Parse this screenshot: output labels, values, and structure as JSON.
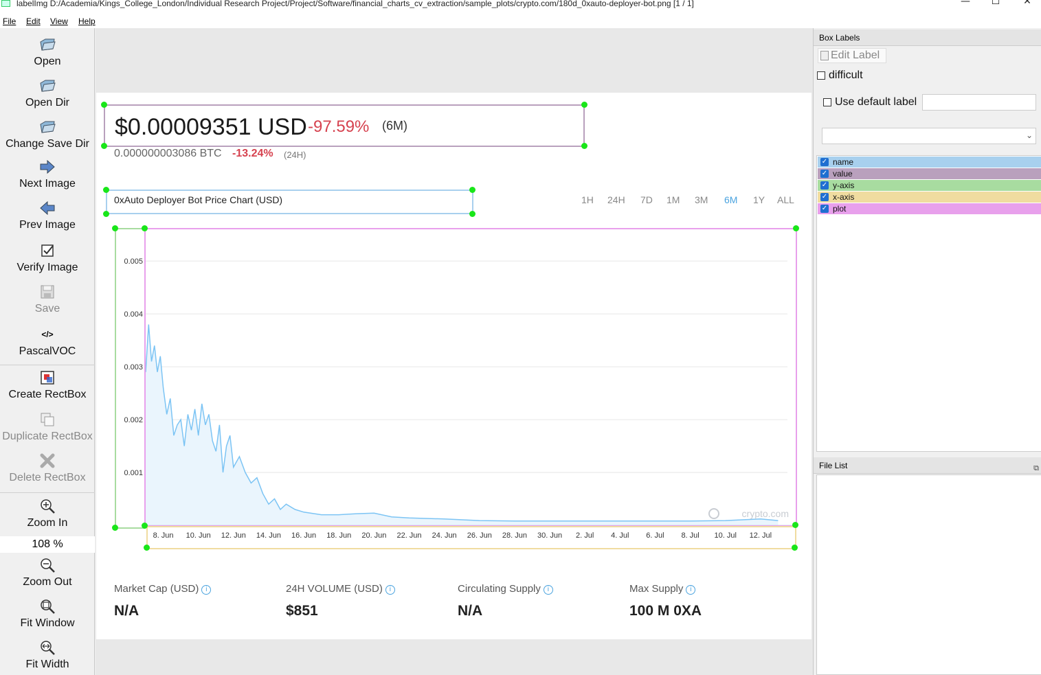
{
  "window": {
    "title": "labelImg D:/Academia/Kings_College_London/Individual Research Project/Project/Software/financial_charts_cv_extraction/sample_plots/crypto.com/180d_0xauto-deployer-bot.png [1 / 1]",
    "minimize": "—",
    "maximize": "☐",
    "close": "✕"
  },
  "menu": {
    "file": "File",
    "edit": "Edit",
    "view": "View",
    "help": "Help"
  },
  "toolbar": {
    "open": "Open",
    "open_dir": "Open Dir",
    "change_save_dir": "Change Save Dir",
    "next_image": "Next Image",
    "prev_image": "Prev Image",
    "verify_image": "Verify Image",
    "save": "Save",
    "format_icon": "</>",
    "format": "PascalVOC",
    "create_rectbox": "Create RectBox",
    "duplicate_rectbox": "Duplicate RectBox",
    "delete_rectbox": "Delete RectBox",
    "zoom_in": "Zoom In",
    "zoom_level": "108 %",
    "zoom_out": "Zoom Out",
    "fit_window": "Fit Window",
    "fit_width": "Fit Width"
  },
  "page": {
    "price": "$0.00009351 USD",
    "price_change": "-97.59%",
    "price_period": "(6M)",
    "btc_price": "0.000000003086 BTC",
    "btc_change": "-13.24%",
    "btc_period": "(24H)",
    "chart_title": "0xAuto Deployer Bot Price Chart (USD)",
    "ranges": [
      "1H",
      "24H",
      "7D",
      "1M",
      "3M",
      "6M",
      "1Y",
      "ALL"
    ],
    "active_range": "6M",
    "watermark": "crypto.com",
    "stats": [
      {
        "label": "Market Cap (USD)",
        "value": "N/A"
      },
      {
        "label": "24H VOLUME (USD)",
        "value": "$851"
      },
      {
        "label": "Circulating Supply",
        "value": "N/A"
      },
      {
        "label": "Max Supply",
        "value": "100 M 0XA"
      }
    ],
    "info_glyph": "i"
  },
  "annotation_colors": {
    "name": "#a8d0ee",
    "value": "#b9a0bd",
    "y_axis": "#a8dca0",
    "x_axis": "#f0dca0",
    "plot": "#e8a0ec",
    "handle": "#19e619"
  },
  "chart_data": {
    "type": "area",
    "xlabel": "",
    "ylabel": "",
    "x_ticks": [
      "8. Jun",
      "10. Jun",
      "12. Jun",
      "14. Jun",
      "16. Jun",
      "18. Jun",
      "20. Jun",
      "22. Jun",
      "24. Jun",
      "26. Jun",
      "28. Jun",
      "30. Jun",
      "2. Jul",
      "4. Jul",
      "6. Jul",
      "8. Jul",
      "10. Jul",
      "12. Jul"
    ],
    "y_ticks": [
      "0.001",
      "0.002",
      "0.003",
      "0.004",
      "0.005"
    ],
    "ylim": [
      0,
      0.0056
    ],
    "x_start": "7. Jun",
    "x_end": "14. Jul",
    "grid": true,
    "line_color": "#7cc4f4",
    "series": [
      {
        "x": [
          "7. Jun",
          "7. Jun",
          "7. Jun",
          "7. Jun",
          "7. Jun",
          "7. Jun",
          "8. Jun",
          "8. Jun",
          "8. Jun",
          "8. Jun",
          "8. Jun",
          "9. Jun",
          "9. Jun",
          "9. Jun",
          "9. Jun",
          "9. Jun",
          "10. Jun",
          "10. Jun",
          "10. Jun",
          "10. Jun",
          "10. Jun",
          "11. Jun",
          "11. Jun",
          "11. Jun",
          "11. Jun",
          "11. Jun",
          "12. Jun",
          "12. Jun",
          "12. Jun",
          "13. Jun",
          "13. Jun",
          "13. Jun",
          "14. Jun",
          "14. Jun",
          "14. Jun",
          "15. Jun",
          "15. Jun",
          "16. Jun",
          "17. Jun",
          "18. Jun",
          "19. Jun",
          "20. Jun",
          "21. Jun",
          "22. Jun",
          "24. Jun",
          "26. Jun",
          "28. Jun",
          "30. Jun",
          "2. Jul",
          "4. Jul",
          "6. Jul",
          "8. Jul",
          "10. Jul",
          "12. Jul",
          "13. Jul"
        ],
        "y": [
          0.0029,
          0.0038,
          0.0031,
          0.0034,
          0.0029,
          0.0032,
          0.0026,
          0.0021,
          0.0024,
          0.0017,
          0.0019,
          0.002,
          0.0015,
          0.0021,
          0.0018,
          0.0022,
          0.0017,
          0.0023,
          0.0019,
          0.0021,
          0.0016,
          0.0014,
          0.0019,
          0.001,
          0.0015,
          0.0017,
          0.0011,
          0.0013,
          0.001,
          0.0008,
          0.0009,
          0.0006,
          0.0004,
          0.0005,
          0.0003,
          0.0004,
          0.0003,
          0.00025,
          0.0002,
          0.0002,
          0.00022,
          0.00023,
          0.00016,
          0.00014,
          0.00012,
          9e-05,
          8e-05,
          8e-05,
          8e-05,
          8e-05,
          8e-05,
          8e-05,
          9e-05,
          0.00012,
          9e-05
        ]
      }
    ]
  },
  "right_panel": {
    "box_labels_title": "Box Labels",
    "edit_label": "Edit Label",
    "difficult": "difficult",
    "use_default_label": "Use default label",
    "default_label_value": "",
    "combo_value": "",
    "combo_arrow": "⌄",
    "check_glyph": "✓",
    "labels": [
      {
        "name": "name",
        "checked": true
      },
      {
        "name": "value",
        "checked": true
      },
      {
        "name": "y-axis",
        "checked": true
      },
      {
        "name": "x-axis",
        "checked": true
      },
      {
        "name": "plot",
        "checked": true
      }
    ],
    "file_list_title": "File List",
    "float_icon": "⧉"
  }
}
